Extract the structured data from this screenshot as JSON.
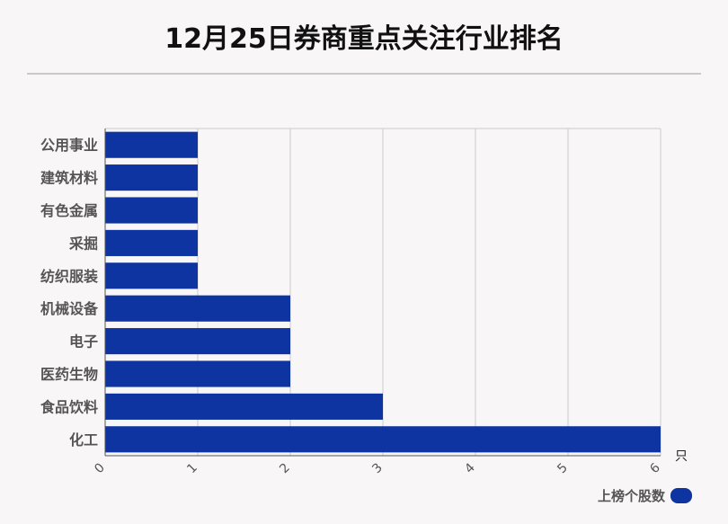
{
  "title": "12月25日券商重点关注行业排名",
  "legend_label": "上榜个股数",
  "unit_label": "只",
  "colors": {
    "bar": "#0d34a0",
    "grid": "#cccccc",
    "axis": "#555555",
    "label": "#555555"
  },
  "chart_data": {
    "type": "bar",
    "orientation": "horizontal",
    "categories": [
      "公用事业",
      "建筑材料",
      "有色金属",
      "采掘",
      "纺织服装",
      "机械设备",
      "电子",
      "医药生物",
      "食品饮料",
      "化工"
    ],
    "series": [
      {
        "name": "上榜个股数",
        "values": [
          1,
          1,
          1,
          1,
          1,
          2,
          2,
          2,
          3,
          6
        ]
      }
    ],
    "xlim": [
      0,
      6
    ],
    "xticks": [
      "0",
      "1",
      "2",
      "3",
      "4",
      "5",
      "6"
    ],
    "xunit": "只",
    "grid": true,
    "legend_position": "bottom-right"
  }
}
